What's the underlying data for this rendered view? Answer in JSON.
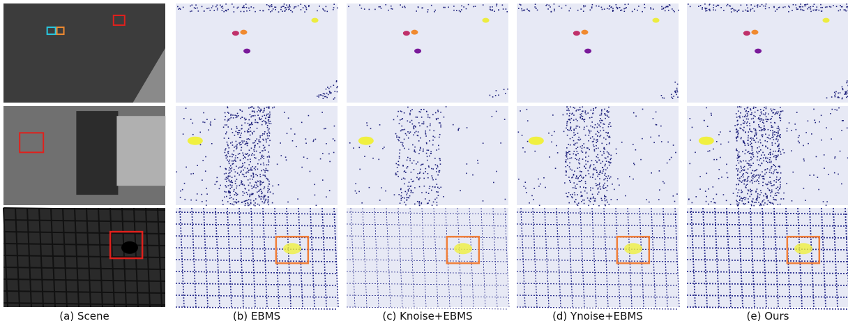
{
  "captions": [
    "(a) Scene",
    "(b) EBMS",
    "(c) Knoise+EBMS",
    "(d) Ynoise+EBMS",
    "(e) Ours"
  ]
}
